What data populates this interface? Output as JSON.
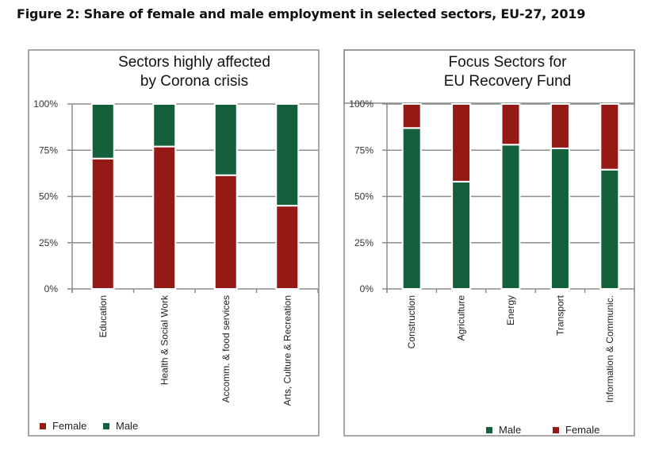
{
  "figure_title": "Figure 2: Share of female and male employment in selected sectors, EU-27, 2019",
  "colors": {
    "female": "#951915",
    "male": "#13603a"
  },
  "chart_data": [
    {
      "type": "bar",
      "stacked": true,
      "percent_stacked": true,
      "title": [
        "Sectors highly affected",
        "by Corona crisis"
      ],
      "xlabel": "",
      "ylabel": "",
      "ylim": [
        0,
        100
      ],
      "yticks": [
        "0%",
        "25%",
        "50%",
        "75%",
        "100%"
      ],
      "grid": true,
      "categories": [
        "Education",
        "Health & Social Work",
        "Accomm. & food services",
        "Arts, Culture & Recreation"
      ],
      "stack_order": [
        "Female",
        "Male"
      ],
      "series": [
        {
          "name": "Female",
          "color": "#951915",
          "values": [
            70.5,
            77,
            61.5,
            45
          ]
        },
        {
          "name": "Male",
          "color": "#13603a",
          "values": [
            29.5,
            23,
            38.5,
            55
          ]
        }
      ],
      "legend": {
        "position": "bottom-left",
        "entries": [
          "Female",
          "Male"
        ]
      }
    },
    {
      "type": "bar",
      "stacked": true,
      "percent_stacked": true,
      "title": [
        "Focus Sectors for",
        "EU Recovery Fund"
      ],
      "xlabel": "",
      "ylabel": "",
      "ylim": [
        0,
        100
      ],
      "yticks": [
        "0%",
        "25%",
        "50%",
        "75%",
        "100%"
      ],
      "grid": true,
      "categories": [
        "Construction",
        "Agriculture",
        "Energy",
        "Transport",
        "Information & Communic."
      ],
      "stack_order": [
        "Male",
        "Female"
      ],
      "series": [
        {
          "name": "Male",
          "color": "#13603a",
          "values": [
            87,
            58,
            78,
            76,
            64.5
          ]
        },
        {
          "name": "Female",
          "color": "#951915",
          "values": [
            13,
            42,
            22,
            24,
            35.5
          ]
        }
      ],
      "legend": {
        "position": "bottom-center",
        "entries": [
          "Male",
          "Female"
        ]
      }
    }
  ]
}
